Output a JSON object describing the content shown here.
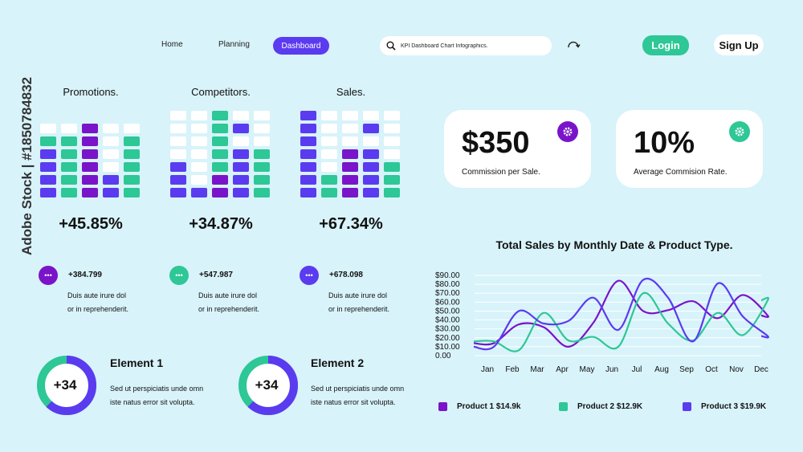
{
  "colors": {
    "purple": "#7a14c9",
    "blue": "#5b3bf0",
    "green": "#2ec796",
    "white": "#ffffff",
    "background": "#d8f3fa"
  },
  "nav": {
    "home": "Home",
    "planning": "Planning",
    "dashboard": "Dashboard",
    "search_value": "KPI Dashboard Chart Infographics.",
    "login": "Login",
    "signup": "Sign Up"
  },
  "grids": [
    {
      "title": "Promotions.",
      "percent": "+45.85%",
      "value": "+384.799",
      "text1": "Duis aute irure dol",
      "text2": "or in reprehenderit.",
      "accent": "#7a14c9",
      "rows": [
        [
          "W",
          "W",
          "P",
          "W",
          "W"
        ],
        [
          "G",
          "G",
          "P",
          "W",
          "G"
        ],
        [
          "B",
          "G",
          "P",
          "W",
          "G"
        ],
        [
          "B",
          "G",
          "P",
          "W",
          "G"
        ],
        [
          "B",
          "G",
          "P",
          "B",
          "G"
        ],
        [
          "B",
          "G",
          "P",
          "B",
          "G"
        ]
      ]
    },
    {
      "title": "Competitors.",
      "percent": "+34.87%",
      "value": "+547.987",
      "text1": "Duis aute irure dol",
      "text2": "or in reprehenderit.",
      "accent": "#2ec796",
      "rows": [
        [
          "W",
          "W",
          "G",
          "W",
          "W"
        ],
        [
          "W",
          "W",
          "G",
          "B",
          "W"
        ],
        [
          "W",
          "W",
          "G",
          "W",
          "W"
        ],
        [
          "W",
          "W",
          "G",
          "B",
          "G"
        ],
        [
          "B",
          "W",
          "G",
          "B",
          "G"
        ],
        [
          "B",
          "W",
          "P",
          "B",
          "G"
        ],
        [
          "B",
          "B",
          "P",
          "B",
          "G"
        ]
      ]
    },
    {
      "title": "Sales.",
      "percent": "+67.34%",
      "value": "+678.098",
      "text1": "Duis aute irure dol",
      "text2": "or in reprehenderit.",
      "accent": "#5b3bf0",
      "rows": [
        [
          "B",
          "W",
          "W",
          "W",
          "W"
        ],
        [
          "B",
          "W",
          "W",
          "B",
          "W"
        ],
        [
          "B",
          "W",
          "W",
          "W",
          "W"
        ],
        [
          "B",
          "W",
          "P",
          "B",
          "W"
        ],
        [
          "B",
          "W",
          "P",
          "B",
          "G"
        ],
        [
          "B",
          "G",
          "P",
          "B",
          "G"
        ],
        [
          "B",
          "G",
          "P",
          "B",
          "G"
        ]
      ]
    }
  ],
  "elements": [
    {
      "title": "Element 1",
      "value": "+34",
      "text1": "Sed ut perspiciatis unde omn",
      "text2": "iste natus error sit volupta.",
      "progress": 0.62
    },
    {
      "title": "Element 2",
      "value": "+34",
      "text1": "Sed ut perspiciatis unde omn",
      "text2": "iste natus error sit volupta.",
      "progress": 0.62
    }
  ],
  "kpis": [
    {
      "value": "$350",
      "label": "Commission per Sale.",
      "icon": "gear-icon",
      "color": "#7a14c9"
    },
    {
      "value": "10%",
      "label": "Average Commision Rate.",
      "icon": "gear-icon",
      "color": "#2ec796"
    }
  ],
  "chart_data": {
    "type": "line",
    "title": "Total Sales by Monthly Date & Product Type.",
    "categories": [
      "Jan",
      "Feb",
      "Mar",
      "Apr",
      "May",
      "Jun",
      "Jul",
      "Aug",
      "Sep",
      "Oct",
      "Nov",
      "Dec"
    ],
    "y_ticks": [
      "0.00",
      "$10.00",
      "$20.00",
      "$30.00",
      "$40.00",
      "$50.00",
      "$60.00",
      "$70.00",
      "$80.00",
      "$90.00"
    ],
    "ylim": [
      0,
      90
    ],
    "grid": true,
    "series": [
      {
        "name": "Product 1 $14.9k",
        "color": "#7a14c9",
        "values": [
          14,
          35,
          32,
          10,
          37,
          84,
          50,
          51,
          61,
          42,
          68,
          45
        ]
      },
      {
        "name": "Product 2 $12.9K",
        "color": "#2ec796",
        "values": [
          16,
          6,
          48,
          17,
          21,
          10,
          70,
          36,
          17,
          48,
          23,
          62
        ]
      },
      {
        "name": "Product 3 $19.9K",
        "color": "#5b3bf0",
        "values": [
          10,
          50,
          36,
          39,
          65,
          29,
          85,
          65,
          16,
          81,
          44,
          22
        ]
      }
    ]
  },
  "credit": "Adobe Stock | #1850784832"
}
